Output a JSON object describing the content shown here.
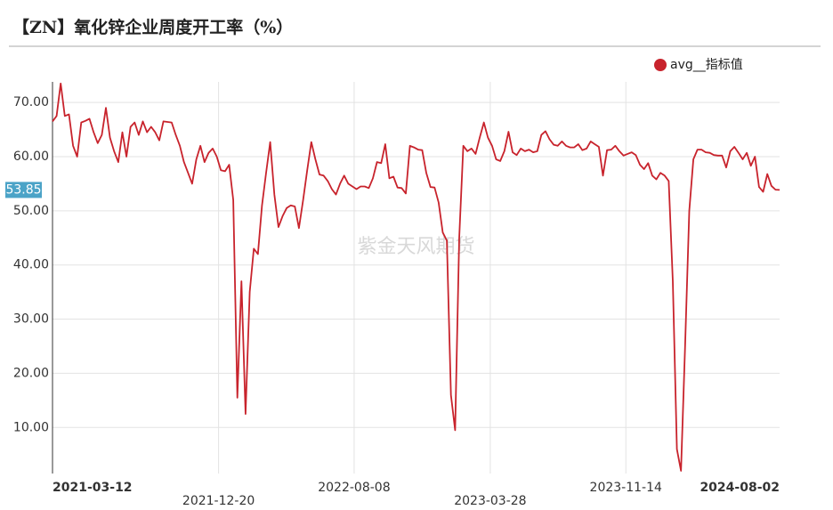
{
  "chart_data": {
    "type": "line",
    "title": "【ZN】氧化锌企业周度开工率（%）",
    "watermark": "紫金天风期货",
    "xlim": [
      "2021-03-12",
      "2024-08-02"
    ],
    "xticks": [
      "2021-03-12",
      "2021-12-20",
      "2022-08-08",
      "2023-03-28",
      "2023-11-14",
      "2024-08-02"
    ],
    "ylim": [
      1.5,
      73.8
    ],
    "yticks": [
      {
        "value": 10,
        "label": "10.00"
      },
      {
        "value": 20,
        "label": "20.00"
      },
      {
        "value": 30,
        "label": "30.00"
      },
      {
        "value": 40,
        "label": "40.00"
      },
      {
        "value": 50,
        "label": "50.00"
      },
      {
        "value": 60,
        "label": "60.00"
      },
      {
        "value": 70,
        "label": "70.00"
      }
    ],
    "grid": true,
    "legend": "top-right",
    "annotations": [
      {
        "value": 53.85,
        "label": "53.85"
      }
    ],
    "x": [
      "2021-03-12",
      "2021-03-19",
      "2021-03-26",
      "2021-04-02",
      "2021-04-09",
      "2021-04-16",
      "2021-04-23",
      "2021-04-30",
      "2021-05-07",
      "2021-05-14",
      "2021-05-21",
      "2021-05-28",
      "2021-06-04",
      "2021-06-11",
      "2021-06-18",
      "2021-06-25",
      "2021-07-02",
      "2021-07-09",
      "2021-07-16",
      "2021-07-23",
      "2021-07-30",
      "2021-08-06",
      "2021-08-13",
      "2021-08-20",
      "2021-08-27",
      "2021-09-03",
      "2021-09-10",
      "2021-09-17",
      "2021-09-24",
      "2021-10-01",
      "2021-10-08",
      "2021-10-15",
      "2021-10-22",
      "2021-10-29",
      "2021-11-05",
      "2021-11-12",
      "2021-11-19",
      "2021-11-26",
      "2021-12-03",
      "2021-12-10",
      "2021-12-17",
      "2021-12-24",
      "2021-12-31",
      "2022-01-07",
      "2022-01-14",
      "2022-01-21",
      "2022-01-28",
      "2022-02-04",
      "2022-02-11",
      "2022-02-18",
      "2022-02-25",
      "2022-03-04",
      "2022-03-11",
      "2022-03-18",
      "2022-03-25",
      "2022-04-01",
      "2022-04-08",
      "2022-04-15",
      "2022-04-22",
      "2022-04-29",
      "2022-05-06",
      "2022-05-13",
      "2022-05-20",
      "2022-05-27",
      "2022-06-03",
      "2022-06-10",
      "2022-06-17",
      "2022-06-24",
      "2022-07-01",
      "2022-07-08",
      "2022-07-15",
      "2022-07-22",
      "2022-07-29",
      "2022-08-05",
      "2022-08-12",
      "2022-08-19",
      "2022-08-26",
      "2022-09-02",
      "2022-09-09",
      "2022-09-16",
      "2022-09-23",
      "2022-09-30",
      "2022-10-07",
      "2022-10-14",
      "2022-10-21",
      "2022-10-28",
      "2022-11-04",
      "2022-11-11",
      "2022-11-18",
      "2022-11-25",
      "2022-12-02",
      "2022-12-09",
      "2022-12-16",
      "2022-12-23",
      "2022-12-30",
      "2023-01-06",
      "2023-01-13",
      "2023-01-20",
      "2023-01-27",
      "2023-02-03",
      "2023-02-10",
      "2023-02-17",
      "2023-02-24",
      "2023-03-03",
      "2023-03-10",
      "2023-03-17",
      "2023-03-24",
      "2023-03-31",
      "2023-04-07",
      "2023-04-14",
      "2023-04-21",
      "2023-04-28",
      "2023-05-05",
      "2023-05-12",
      "2023-05-19",
      "2023-05-26",
      "2023-06-02",
      "2023-06-09",
      "2023-06-16",
      "2023-06-23",
      "2023-06-30",
      "2023-07-07",
      "2023-07-14",
      "2023-07-21",
      "2023-07-28",
      "2023-08-04",
      "2023-08-11",
      "2023-08-18",
      "2023-08-25",
      "2023-09-01",
      "2023-09-08",
      "2023-09-15",
      "2023-09-22",
      "2023-09-29",
      "2023-10-06",
      "2023-10-13",
      "2023-10-20",
      "2023-10-27",
      "2023-11-03",
      "2023-11-10",
      "2023-11-17",
      "2023-11-24",
      "2023-12-01",
      "2023-12-08",
      "2023-12-15",
      "2023-12-22",
      "2023-12-29",
      "2024-01-05",
      "2024-01-12",
      "2024-01-19",
      "2024-01-26",
      "2024-02-02",
      "2024-02-09",
      "2024-02-16",
      "2024-02-23",
      "2024-03-01",
      "2024-03-08",
      "2024-03-15",
      "2024-03-22",
      "2024-03-29",
      "2024-04-05",
      "2024-04-12",
      "2024-04-19",
      "2024-04-26",
      "2024-05-03",
      "2024-05-10",
      "2024-05-17",
      "2024-05-24",
      "2024-05-31",
      "2024-06-07",
      "2024-06-14",
      "2024-06-21",
      "2024-06-28",
      "2024-07-05",
      "2024-07-12",
      "2024-07-19",
      "2024-07-26",
      "2024-08-02"
    ],
    "series": [
      {
        "name": "avg__指标值",
        "color": "#c8232c",
        "values": [
          66.5,
          67.5,
          73.5,
          67.5,
          67.8,
          62,
          60,
          66.3,
          66.6,
          67,
          64.5,
          62.5,
          64,
          69,
          63.5,
          61,
          59,
          64.5,
          60,
          65.5,
          66.3,
          64,
          66.5,
          64.5,
          65.5,
          64.5,
          63,
          66.5,
          66.4,
          66.3,
          64,
          62,
          59,
          57,
          55,
          59.5,
          62,
          59,
          60.7,
          61.5,
          60,
          57.5,
          57.3,
          58.5,
          52,
          15.5,
          37,
          12.5,
          35,
          43,
          42,
          51,
          57,
          62.7,
          53,
          47,
          49,
          50.5,
          51,
          50.8,
          46.8,
          52,
          57.5,
          62.7,
          59.5,
          56.7,
          56.5,
          55.5,
          54,
          53,
          55,
          56.5,
          55,
          54.5,
          54,
          54.5,
          54.5,
          54.2,
          56,
          59,
          58.8,
          62.3,
          56,
          56.3,
          54.3,
          54.2,
          53.2,
          62,
          61.7,
          61.3,
          61.2,
          57,
          54.4,
          54.3,
          51.5,
          46,
          44.5,
          16,
          9.5,
          45,
          62,
          61,
          61.5,
          60.5,
          63.5,
          66.3,
          63.5,
          62,
          59.5,
          59.2,
          61,
          64.6,
          60.8,
          60.3,
          61.5,
          61,
          61.3,
          60.8,
          61,
          64,
          64.7,
          63.2,
          62.2,
          62,
          62.8,
          62,
          61.7,
          61.7,
          62.3,
          61.2,
          61.5,
          62.8,
          62.3,
          61.8,
          56.5,
          61.2,
          61.3,
          62,
          61,
          60.2,
          60.5,
          60.8,
          60.3,
          58.5,
          57.7,
          58.8,
          56.5,
          55.8,
          57,
          56.5,
          55.5,
          37,
          6,
          2,
          25,
          50,
          59.5,
          61.3,
          61.3,
          60.8,
          60.7,
          60.3,
          60.2,
          60.2,
          58,
          61,
          61.8,
          60.7,
          59.5,
          60.7,
          58.3,
          60,
          54.4,
          53.5,
          56.8,
          54.6,
          53.9,
          53.85
        ]
      }
    ]
  }
}
